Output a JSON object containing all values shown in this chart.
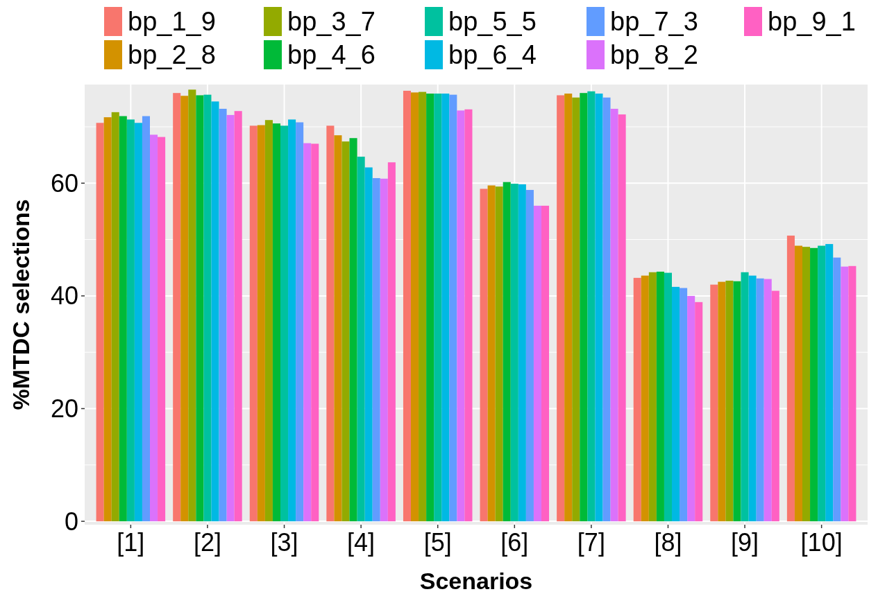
{
  "chart_data": {
    "type": "bar",
    "xlabel": "Scenarios",
    "ylabel": "%MTDC selections",
    "categories": [
      "[1]",
      "[2]",
      "[3]",
      "[4]",
      "[5]",
      "[6]",
      "[7]",
      "[8]",
      "[9]",
      "[10]"
    ],
    "series": [
      {
        "name": "bp_1_9",
        "color": "#f8766d",
        "values": [
          70.7,
          76.0,
          70.2,
          70.2,
          76.4,
          59.0,
          75.6,
          43.2,
          42.0,
          50.7
        ]
      },
      {
        "name": "bp_2_8",
        "color": "#d39200",
        "values": [
          71.7,
          75.5,
          70.3,
          68.5,
          76.1,
          59.6,
          75.9,
          43.6,
          42.5,
          48.9
        ]
      },
      {
        "name": "bp_3_7",
        "color": "#93aa00",
        "values": [
          72.6,
          76.6,
          71.2,
          67.4,
          76.2,
          59.4,
          75.2,
          44.2,
          42.7,
          48.7
        ]
      },
      {
        "name": "bp_4_6",
        "color": "#00ba38",
        "values": [
          71.9,
          75.6,
          70.6,
          68.0,
          75.9,
          60.2,
          76.0,
          44.3,
          42.6,
          48.5
        ]
      },
      {
        "name": "bp_5_5",
        "color": "#00c19f",
        "values": [
          71.3,
          75.7,
          70.2,
          64.7,
          75.9,
          59.9,
          76.3,
          44.1,
          44.2,
          48.9
        ]
      },
      {
        "name": "bp_6_4",
        "color": "#00b9e3",
        "values": [
          70.7,
          74.5,
          71.3,
          62.8,
          75.9,
          59.8,
          75.9,
          41.6,
          43.6,
          49.2
        ]
      },
      {
        "name": "bp_7_3",
        "color": "#619cff",
        "values": [
          71.9,
          73.2,
          70.8,
          60.9,
          75.7,
          58.8,
          75.2,
          41.4,
          43.1,
          46.8
        ]
      },
      {
        "name": "bp_8_2",
        "color": "#db72fb",
        "values": [
          68.6,
          72.1,
          67.1,
          60.8,
          72.9,
          56.0,
          73.2,
          40.0,
          43.0,
          45.2
        ]
      },
      {
        "name": "bp_9_1",
        "color": "#ff61c3",
        "values": [
          68.2,
          72.8,
          67.0,
          63.7,
          73.1,
          56.0,
          72.2,
          38.9,
          40.9,
          45.3
        ]
      }
    ],
    "ylim": [
      -0.6,
      77.5
    ],
    "yticks": [
      0,
      20,
      40,
      60
    ],
    "grid": true,
    "legend": "top"
  }
}
